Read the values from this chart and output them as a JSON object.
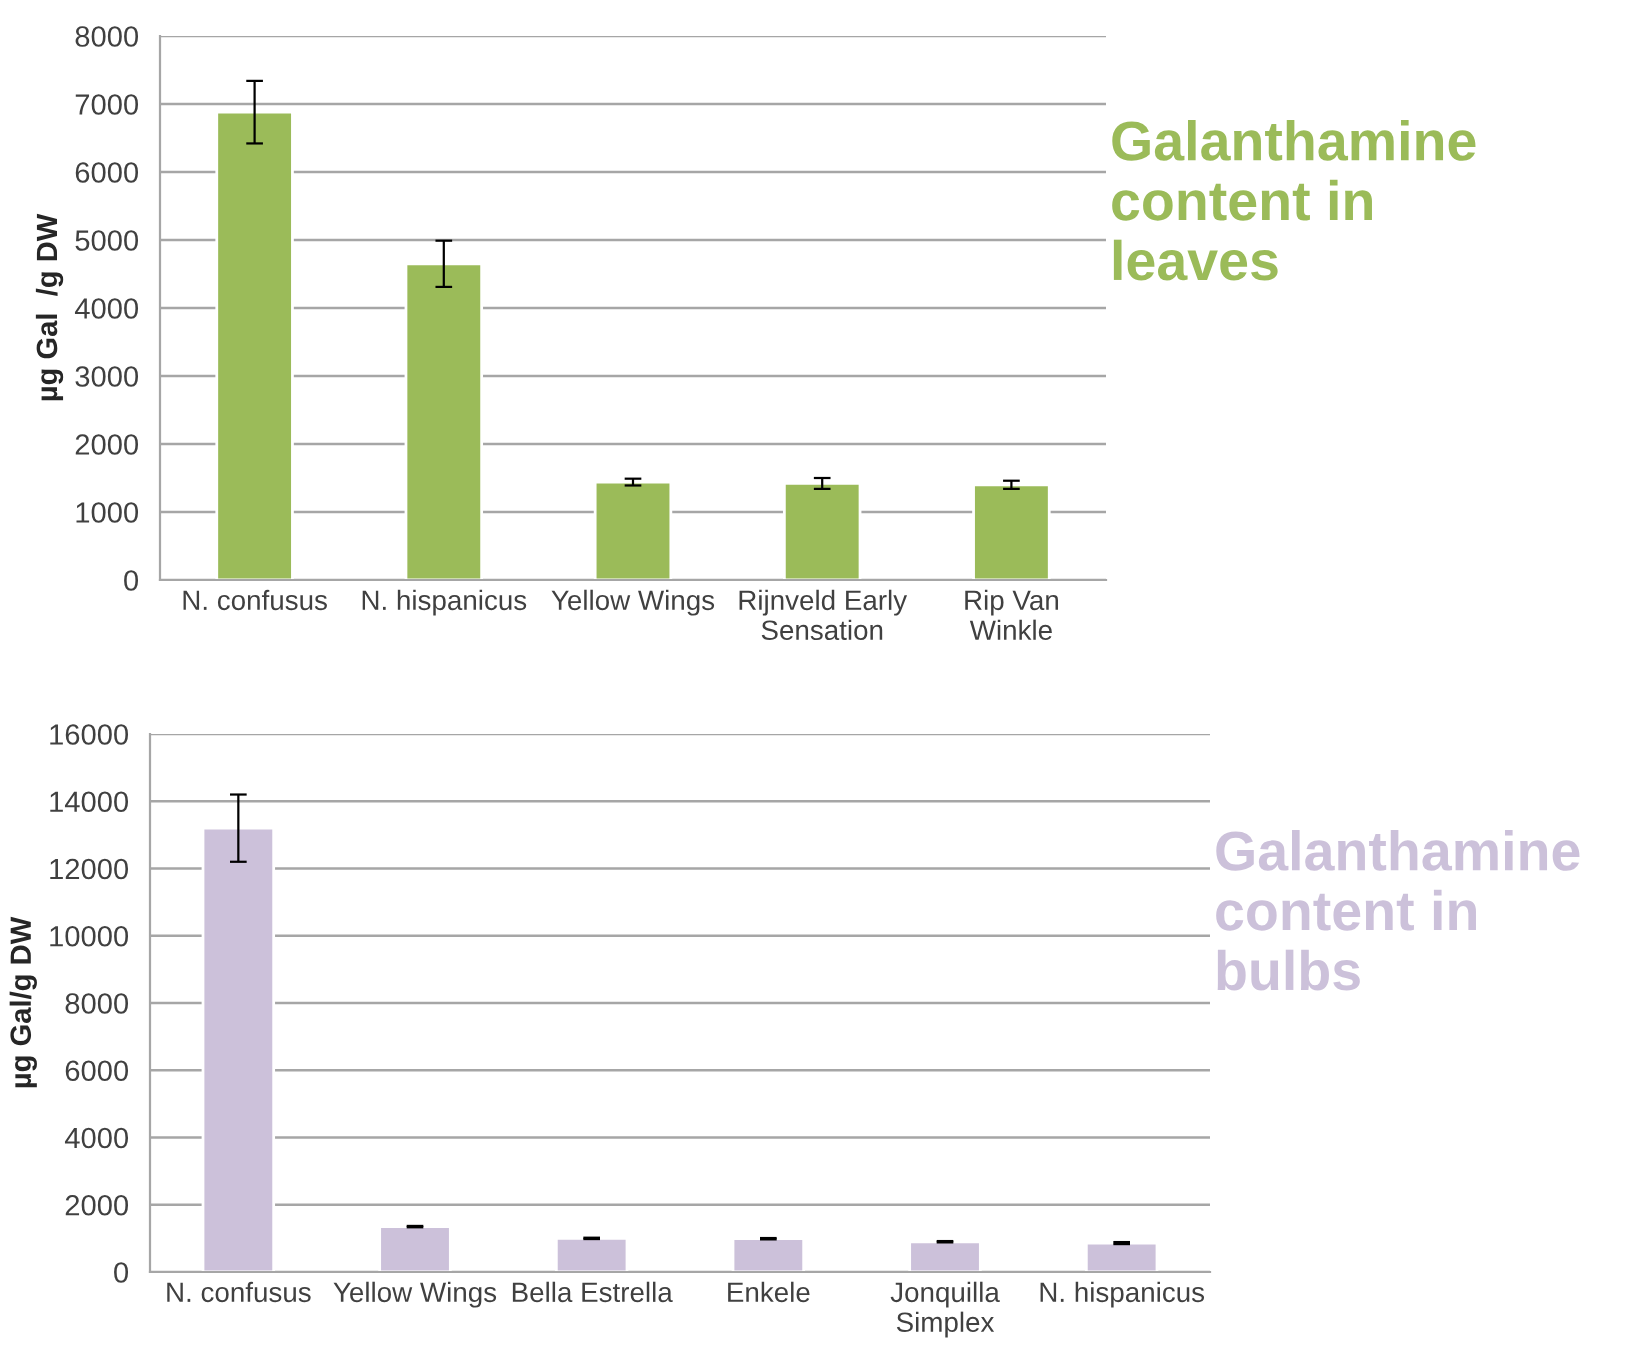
{
  "chart_data": [
    {
      "type": "bar",
      "title": "Galanthamine\ncontent in\nleaves",
      "ylabel": "µg Gal  /g DW",
      "categories": [
        "N. confusus",
        "N. hispanicus",
        "Yellow Wings",
        "Rijnveld Early\nSensation",
        "Rip Van\nWinkle"
      ],
      "series": [
        {
          "color": "#9bbb59",
          "values": [
            6880,
            4650,
            1440,
            1420,
            1400
          ],
          "errors": [
            460,
            340,
            50,
            80,
            60
          ]
        }
      ],
      "ylim": [
        0,
        8000
      ],
      "yticks": [
        0,
        1000,
        2000,
        3000,
        4000,
        5000,
        6000,
        7000,
        8000
      ],
      "grid": "y",
      "legend": false
    },
    {
      "type": "bar",
      "title": "Galanthamine\ncontent in\nbulbs",
      "ylabel": "µg Gal/g DW",
      "categories": [
        "N. confusus",
        "Yellow Wings",
        "Bella Estrella",
        "Enkele",
        "Jonquilla\nSimplex",
        "N. hispanicus"
      ],
      "series": [
        {
          "color": "#ccc1da",
          "values": [
            13200,
            1350,
            1000,
            990,
            900,
            860
          ],
          "errors": [
            1000,
            20,
            20,
            20,
            20,
            30
          ]
        }
      ],
      "ylim": [
        0,
        16000
      ],
      "yticks": [
        0,
        2000,
        4000,
        6000,
        8000,
        10000,
        12000,
        14000,
        16000
      ],
      "grid": "y",
      "legend": false
    }
  ]
}
